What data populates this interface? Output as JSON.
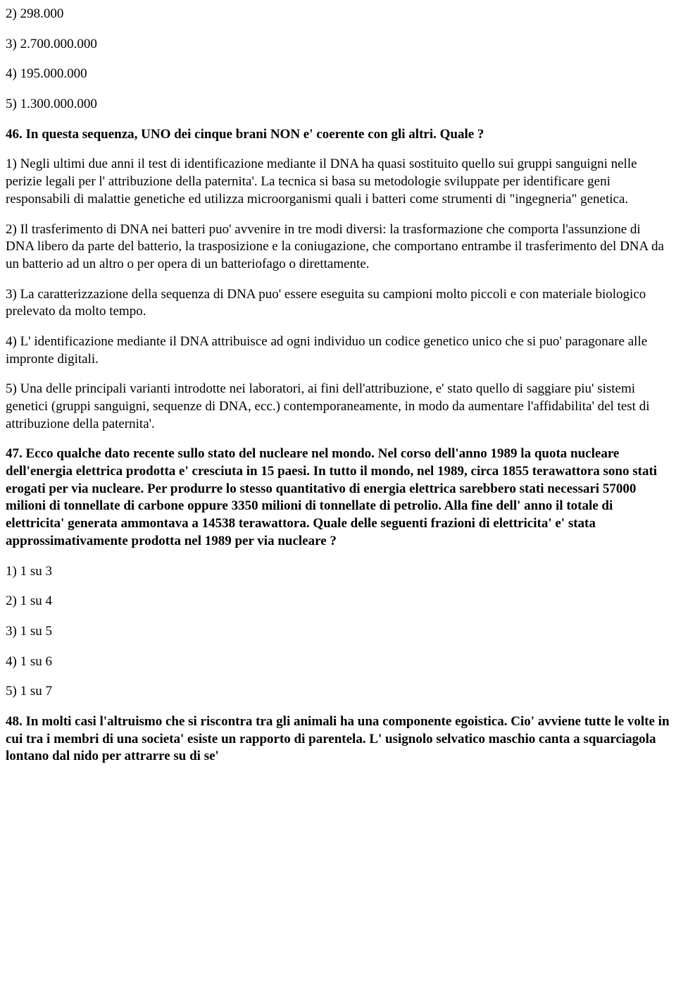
{
  "q45": {
    "opt2": "2) 298.000",
    "opt3": "3) 2.700.000.000",
    "opt4": "4) 195.000.000",
    "opt5": "5) 1.300.000.000"
  },
  "q46": {
    "prompt": "46. In questa sequenza, UNO dei cinque brani NON e' coerente con gli altri. Quale ?",
    "opt1": "1) Negli ultimi due anni il test di identificazione mediante il DNA ha quasi sostituito quello sui gruppi sanguigni nelle perizie legali per l' attribuzione della paternita'. La tecnica si basa su metodologie sviluppate per identificare geni responsabili di malattie genetiche ed utilizza microorganismi quali i batteri come strumenti di \"ingegneria\" genetica.",
    "opt2": "2) Il trasferimento di DNA nei batteri puo' avvenire in tre modi diversi: la trasformazione che comporta l'assunzione di DNA libero da parte del batterio, la trasposizione e la coniugazione, che comportano entrambe il trasferimento del DNA da un batterio ad un altro o per opera di un batteriofago o direttamente.",
    "opt3": "3) La caratterizzazione della sequenza di DNA puo' essere eseguita su campioni molto piccoli e con materiale biologico prelevato da molto tempo.",
    "opt4": "4) L' identificazione mediante il DNA attribuisce ad ogni individuo un codice genetico unico che si puo' paragonare alle impronte digitali.",
    "opt5": "5) Una delle principali varianti introdotte nei laboratori, ai fini dell'attribuzione, e' stato quello di saggiare piu' sistemi genetici (gruppi sanguigni, sequenze di DNA, ecc.) contemporaneamente, in modo da aumentare l'affidabilita' del test di attribuzione della paternita'."
  },
  "q47": {
    "prompt": "47. Ecco qualche dato recente sullo stato del nucleare nel mondo. Nel corso dell'anno 1989 la quota nucleare dell'energia elettrica prodotta e' cresciuta in 15 paesi. In tutto il mondo, nel 1989, circa 1855 terawattora sono stati erogati per via nucleare. Per produrre lo stesso quantitativo di energia elettrica sarebbero stati necessari 57000 milioni di tonnellate di carbone oppure 3350 milioni di tonnellate di petrolio. Alla fine dell' anno il totale di elettricita' generata ammontava a 14538 terawattora. Quale delle seguenti frazioni di elettricita' e' stata approssimativamente prodotta nel 1989 per via nucleare ?",
    "opt1": "1) 1 su 3",
    "opt2": "2) 1 su 4",
    "opt3": "3) 1 su 5",
    "opt4": "4) 1 su 6",
    "opt5": "5) 1 su 7"
  },
  "q48": {
    "prompt": "48. In molti casi l'altruismo che si riscontra tra gli animali ha una componente egoistica. Cio' avviene tutte le volte in cui tra i membri di una societa' esiste un rapporto di parentela. L' usignolo selvatico maschio canta a squarciagola lontano dal nido per attrarre su di se'"
  }
}
